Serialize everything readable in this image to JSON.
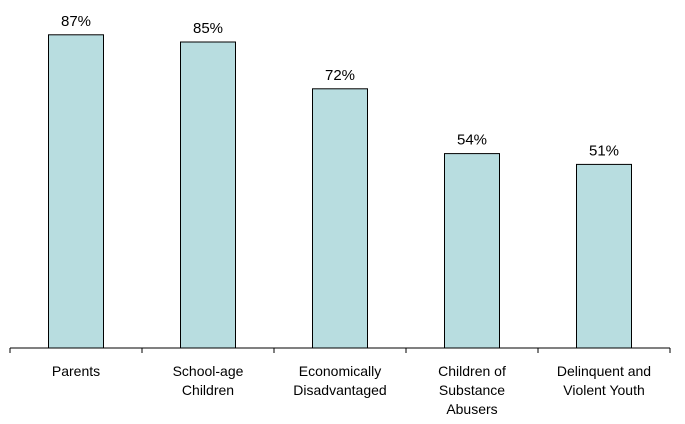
{
  "chart_data": {
    "type": "bar",
    "categories": [
      "Parents",
      "School-age Children",
      "Economically Disadvantaged",
      "Children of Substance Abusers",
      "Delinquent and Violent Youth"
    ],
    "category_lines": [
      [
        "Parents"
      ],
      [
        "School-age",
        "Children"
      ],
      [
        "Economically",
        "Disadvantaged"
      ],
      [
        "Children of",
        "Substance",
        "Abusers"
      ],
      [
        "Delinquent and",
        "Violent Youth"
      ]
    ],
    "values": [
      87,
      85,
      72,
      54,
      51
    ],
    "data_labels": [
      "87%",
      "85%",
      "72%",
      "54%",
      "51%"
    ],
    "unit": "%",
    "title": "",
    "xlabel": "",
    "ylabel": "",
    "ylim": [
      0,
      100
    ],
    "grid": false,
    "legend": "none",
    "colors": {
      "bar_fill": "#b8dde0",
      "bar_stroke": "#000000"
    }
  }
}
